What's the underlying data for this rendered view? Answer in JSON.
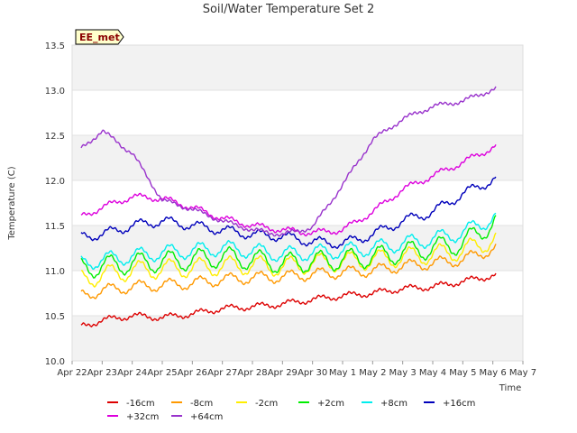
{
  "chart_data": {
    "type": "line",
    "title": "Soil/Water Temperature Set 2",
    "badge": "EE_met",
    "xlabel": "Time",
    "ylabel": "Temperature (C)",
    "ylim": [
      10.0,
      13.5
    ],
    "yticks": [
      "10.0",
      "10.5",
      "11.0",
      "11.5",
      "12.0",
      "12.5",
      "13.0",
      "13.5"
    ],
    "xlim": [
      0,
      15
    ],
    "xticks": [
      "Apr 22",
      "Apr 23",
      "Apr 24",
      "Apr 25",
      "Apr 26",
      "Apr 27",
      "Apr 28",
      "Apr 29",
      "Apr 30",
      "May 1",
      "May 2",
      "May 3",
      "May 4",
      "May 5",
      "May 6",
      "May 7"
    ],
    "band_color": "#f2f2f2",
    "x_days_approx": [
      0.3,
      1,
      2,
      3,
      4,
      5,
      6,
      7,
      8,
      9,
      10,
      11,
      12,
      13,
      14.1
    ],
    "series": [
      {
        "name": "-16cm",
        "color": "#dd0000",
        "values": [
          10.38,
          10.45,
          10.5,
          10.48,
          10.52,
          10.58,
          10.6,
          10.63,
          10.68,
          10.72,
          10.75,
          10.8,
          10.82,
          10.88,
          10.95
        ]
      },
      {
        "name": "-8cm",
        "color": "#ff9900",
        "values": [
          10.72,
          10.78,
          10.82,
          10.84,
          10.86,
          10.9,
          10.92,
          10.93,
          10.96,
          10.98,
          11.0,
          11.05,
          11.08,
          11.12,
          11.25
        ]
      },
      {
        "name": "-2cm",
        "color": "#ffee00",
        "values": [
          10.9,
          10.95,
          11.0,
          11.02,
          11.03,
          11.05,
          11.06,
          11.04,
          11.08,
          11.1,
          11.12,
          11.15,
          11.18,
          11.22,
          11.35
        ]
      },
      {
        "name": "+2cm",
        "color": "#00ee00",
        "values": [
          11.02,
          11.05,
          11.08,
          11.1,
          11.12,
          11.15,
          11.12,
          11.08,
          11.1,
          11.12,
          11.15,
          11.2,
          11.25,
          11.3,
          11.55
        ]
      },
      {
        "name": "+8cm",
        "color": "#00eeee",
        "values": [
          11.08,
          11.12,
          11.16,
          11.2,
          11.22,
          11.25,
          11.22,
          11.18,
          11.2,
          11.22,
          11.25,
          11.3,
          11.35,
          11.42,
          11.6
        ]
      },
      {
        "name": "+16cm",
        "color": "#0000bb",
        "values": [
          11.38,
          11.4,
          11.5,
          11.55,
          11.5,
          11.45,
          11.4,
          11.38,
          11.32,
          11.3,
          11.4,
          11.55,
          11.65,
          11.85,
          12.02
        ]
      },
      {
        "name": "+32cm",
        "color": "#dd00dd",
        "values": [
          11.6,
          11.7,
          11.82,
          11.8,
          11.7,
          11.58,
          11.5,
          11.45,
          11.42,
          11.45,
          11.65,
          11.9,
          12.05,
          12.2,
          12.38
        ]
      },
      {
        "name": "+64cm",
        "color": "#9933cc",
        "values": [
          12.35,
          12.55,
          12.3,
          11.78,
          11.68,
          11.55,
          11.45,
          11.4,
          11.48,
          11.95,
          12.45,
          12.68,
          12.82,
          12.88,
          13.02
        ]
      }
    ]
  }
}
